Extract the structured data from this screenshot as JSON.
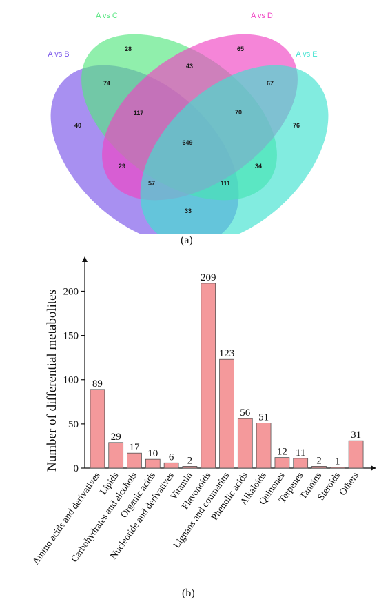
{
  "venn": {
    "sets": [
      {
        "name": "A vs B",
        "color": "#7a55ea"
      },
      {
        "name": "A vs C",
        "color": "#55e67f"
      },
      {
        "name": "A vs D",
        "color": "#f043c3"
      },
      {
        "name": "A vs E",
        "color": "#3fe2d0"
      }
    ],
    "regions": {
      "B_only": "40",
      "C_only": "28",
      "D_only": "65",
      "E_only": "76",
      "BC": "74",
      "CD": "43",
      "DE": "67",
      "BCD": "117",
      "CDE": "70",
      "BCDE": "649",
      "BD": "29",
      "CE": "34",
      "BDE": "57",
      "BCE": "111",
      "BE": "33"
    },
    "panel_label": "(a)"
  },
  "chart_data": {
    "type": "bar",
    "ylabel": "Number of differential metabolites",
    "xlabel": "",
    "ylim": [
      0,
      230
    ],
    "yticks": [
      0,
      50,
      100,
      150,
      200
    ],
    "bar_color": "#f4999b",
    "categories": [
      "Amino acids and derivatives",
      "Lipids",
      "Carbohydrates and alcohols",
      "Organic acids",
      "Nucleotide and derivatives",
      "Vitamin",
      "Flavonoids",
      "Lignans and coumarins",
      "Phenolic acids",
      "Alkaloids",
      "Quinones",
      "Terpenes",
      "Tannins",
      "Steroids",
      "Others"
    ],
    "values": [
      89,
      29,
      17,
      10,
      6,
      2,
      209,
      123,
      56,
      51,
      12,
      11,
      2,
      1,
      31
    ],
    "panel_label": "(b)"
  }
}
